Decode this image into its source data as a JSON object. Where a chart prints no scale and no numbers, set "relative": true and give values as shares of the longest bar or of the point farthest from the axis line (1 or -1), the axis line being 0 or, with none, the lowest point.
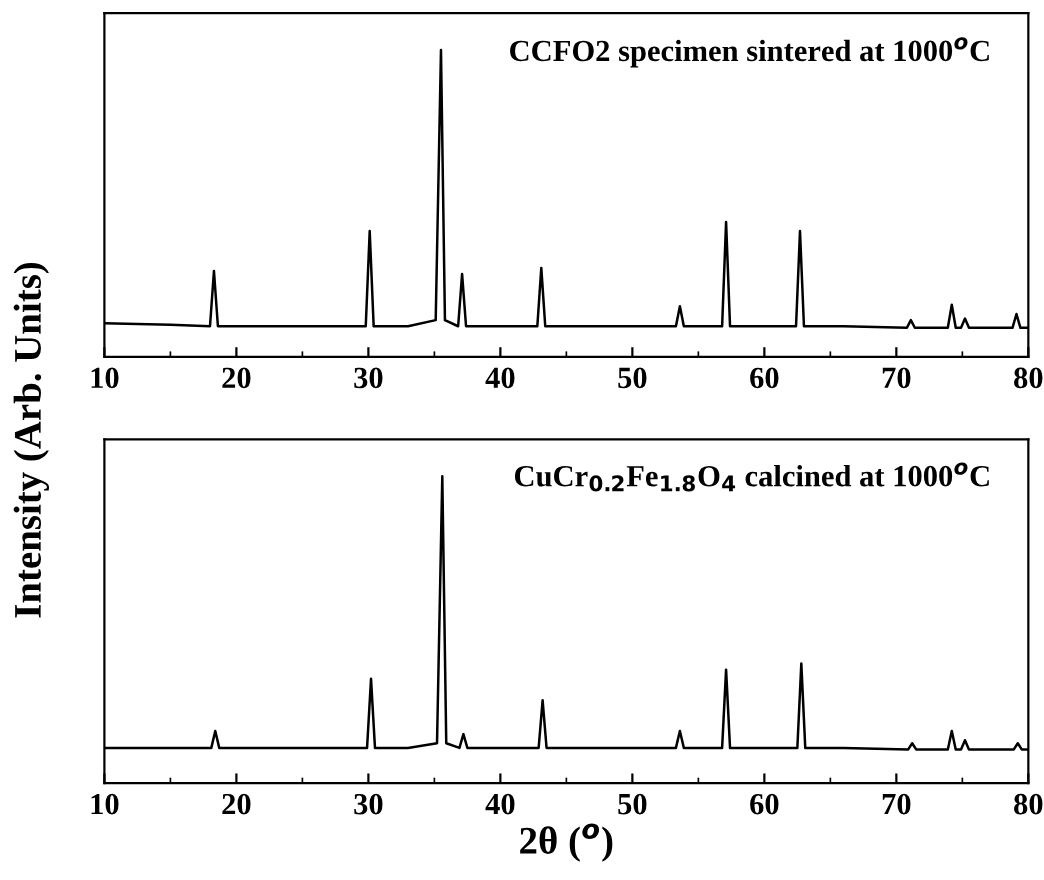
{
  "chart_data": [
    {
      "type": "line",
      "relative": true,
      "ylabel": "Intensity (Arb. Units)",
      "annotations": [
        "CCFO2 specimen sintered at 1000$^{o}$C"
      ],
      "xlim": [
        10,
        80
      ],
      "xticks": [
        10,
        20,
        30,
        40,
        50,
        60,
        70,
        80
      ],
      "x": [
        10,
        15,
        18.0,
        18.3,
        18.6,
        22,
        25,
        29.8,
        30.1,
        30.4,
        33,
        35.1,
        35.5,
        35.8,
        36.8,
        37.1,
        37.4,
        40,
        42.8,
        43.1,
        43.4,
        48,
        53.3,
        53.6,
        53.9,
        56.8,
        57.1,
        57.4,
        62.4,
        62.7,
        63.0,
        66,
        70.8,
        71.1,
        71.4,
        73.9,
        74.2,
        74.5,
        74.9,
        75.2,
        75.5,
        78.8,
        79.1,
        79.4,
        80
      ],
      "series": [
        {
          "color": "#000000",
          "values": [
            0.11,
            0.105,
            0.1,
            0.28,
            0.1,
            0.1,
            0.1,
            0.1,
            0.41,
            0.1,
            0.1,
            0.12,
            1,
            0.12,
            0.1,
            0.27,
            0.1,
            0.1,
            0.1,
            0.29,
            0.1,
            0.1,
            0.1,
            0.165,
            0.1,
            0.1,
            0.44,
            0.1,
            0.1,
            0.41,
            0.1,
            0.1,
            0.095,
            0.12,
            0.095,
            0.095,
            0.17,
            0.095,
            0.095,
            0.125,
            0.095,
            0.095,
            0.14,
            0.095,
            0.095
          ]
        }
      ]
    },
    {
      "type": "line",
      "relative": true,
      "xlabel": "2θ ($^{o}$)",
      "annotations": [
        "CuCr$_{0.2}$Fe$_{1.8}$O$_{4}$ calcined at 1000$^{o}$C"
      ],
      "xlim": [
        10,
        80
      ],
      "xticks": [
        10,
        20,
        30,
        40,
        50,
        60,
        70,
        80
      ],
      "x": [
        10,
        15,
        18.1,
        18.4,
        18.7,
        22,
        25,
        29.9,
        30.2,
        30.5,
        33,
        35.2,
        35.6,
        35.9,
        36.9,
        37.2,
        37.5,
        40,
        42.9,
        43.2,
        43.5,
        48,
        53.3,
        53.6,
        53.9,
        56.8,
        57.1,
        57.4,
        62.5,
        62.8,
        63.1,
        66,
        70.9,
        71.2,
        71.5,
        73.9,
        74.2,
        74.5,
        74.9,
        75.2,
        75.5,
        78.9,
        79.2,
        79.5,
        80
      ],
      "series": [
        {
          "color": "#000000",
          "values": [
            0.115,
            0.115,
            0.115,
            0.17,
            0.115,
            0.115,
            0.115,
            0.115,
            0.34,
            0.115,
            0.115,
            0.13,
            1,
            0.13,
            0.115,
            0.16,
            0.115,
            0.115,
            0.115,
            0.27,
            0.115,
            0.115,
            0.115,
            0.17,
            0.115,
            0.115,
            0.37,
            0.115,
            0.115,
            0.39,
            0.115,
            0.115,
            0.11,
            0.13,
            0.11,
            0.11,
            0.17,
            0.11,
            0.11,
            0.14,
            0.11,
            0.11,
            0.13,
            0.11,
            0.11
          ]
        }
      ]
    }
  ]
}
